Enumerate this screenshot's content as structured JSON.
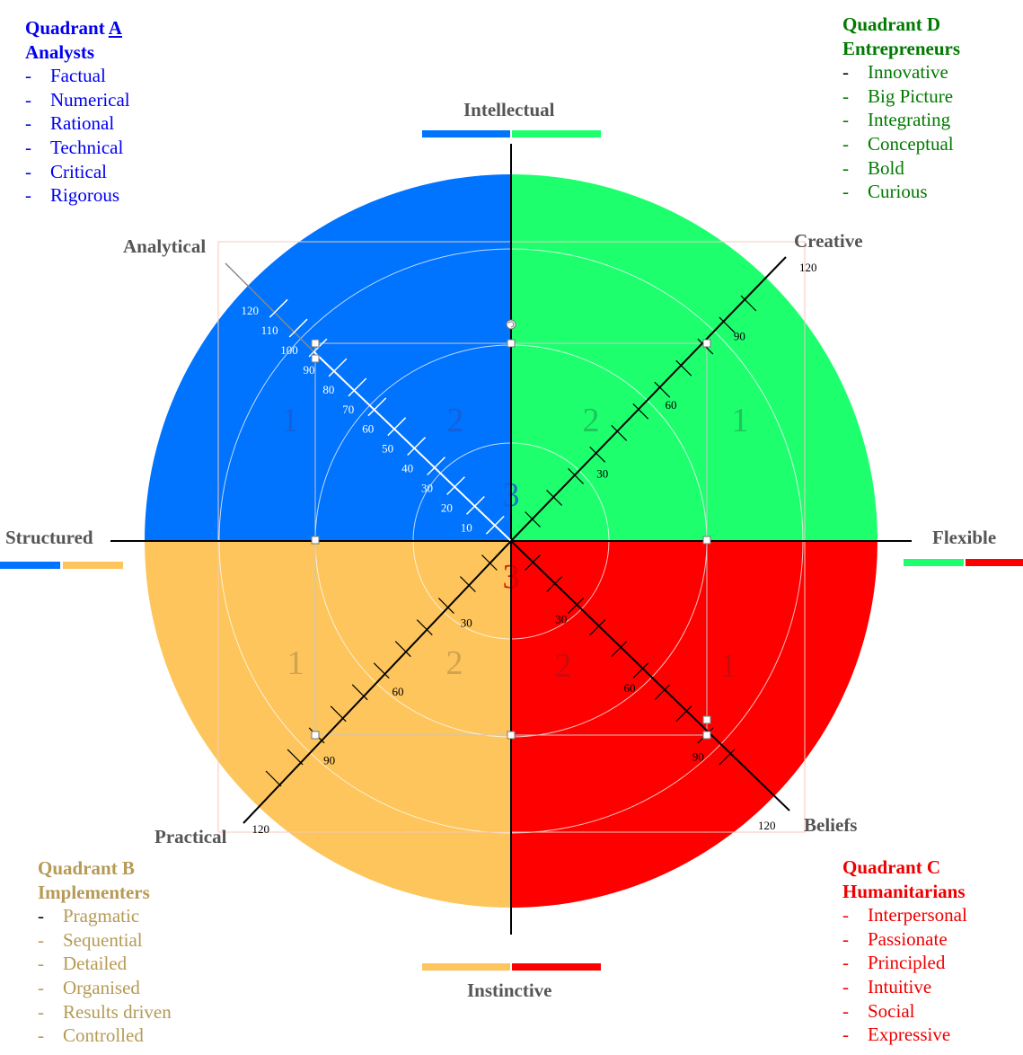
{
  "quadrants": {
    "a": {
      "title_prefix": "Quadrant ",
      "title_letter": "A",
      "subtitle": "Analysts",
      "items": [
        "Factual",
        "Numerical",
        "Rational",
        "Technical",
        "Critical",
        "Rigorous"
      ],
      "color": "#0073ff"
    },
    "d": {
      "title": "Quadrant D",
      "subtitle": "Entrepreneurs",
      "items": [
        "Innovative",
        "Big Picture",
        "Integrating",
        "Conceptual",
        "Bold",
        "Curious"
      ],
      "color": "#1eff6e"
    },
    "b": {
      "title": "Quadrant B",
      "subtitle": "Implementers",
      "items": [
        "Pragmatic",
        "Sequential",
        "Detailed",
        "Organised",
        "Results driven",
        "Controlled"
      ],
      "color": "#fdc55c"
    },
    "c": {
      "title": "Quadrant C",
      "subtitle": "Humanitarians",
      "items": [
        "Interpersonal",
        "Passionate",
        "Principled",
        "Intuitive",
        "Social",
        "Expressive"
      ],
      "color": "#ff0000"
    }
  },
  "dash": "-",
  "axes": {
    "intellectual": "Intellectual",
    "instinctive": "Instinctive",
    "structured": "Structured",
    "flexible": "Flexible",
    "analytical": "Analytical",
    "creative": "Creative",
    "practical": "Practical",
    "beliefs": "Beliefs"
  },
  "zones": {
    "outer": "1",
    "middle": "2",
    "inner_top": "3",
    "inner_bottom": "3"
  },
  "analytical_ticks": [
    "10",
    "20",
    "30",
    "40",
    "50",
    "60",
    "70",
    "80",
    "90",
    "100",
    "110",
    "120"
  ],
  "diagonal_ticks": [
    "30",
    "60",
    "90",
    "120"
  ]
}
